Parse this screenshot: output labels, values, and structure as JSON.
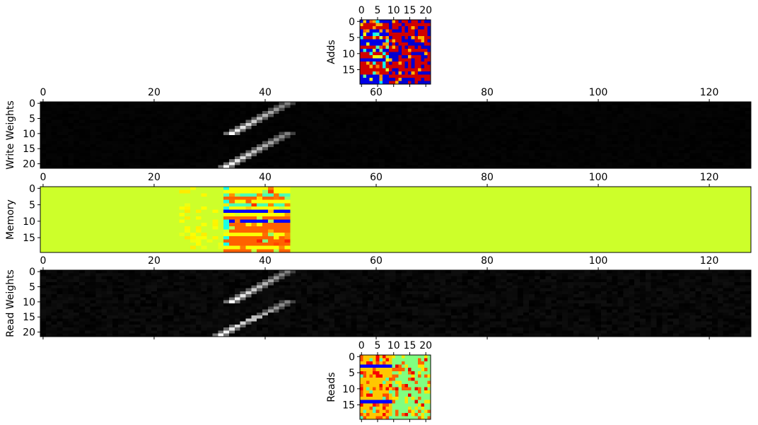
{
  "chart_data": [
    {
      "type": "heatmap",
      "panel": "adds",
      "ylabel": "Adds",
      "colormap": "jet",
      "shape": [
        20,
        22
      ],
      "xticks": [
        0,
        5,
        10,
        15,
        20
      ],
      "yticks": [
        0,
        5,
        10,
        15
      ],
      "tick_axis": "top"
    },
    {
      "type": "heatmap",
      "panel": "write_weights",
      "ylabel": "Write Weights",
      "colormap": "gray",
      "shape": [
        22,
        128
      ],
      "xticks": [
        0,
        20,
        40,
        60,
        80,
        100,
        120
      ],
      "yticks": [
        0,
        5,
        10,
        15,
        20
      ],
      "tick_axis": "top",
      "bands": [
        {
          "row_start": 0,
          "row_end": 10,
          "col_start": 34,
          "col_end": 44
        },
        {
          "row_start": 10,
          "row_end": 21,
          "col_start": 33,
          "col_end": 44
        }
      ]
    },
    {
      "type": "heatmap",
      "panel": "memory",
      "ylabel": "Memory",
      "colormap": "jet",
      "shape": [
        20,
        128
      ],
      "xticks": [
        0,
        20,
        40,
        60,
        80,
        100,
        120
      ],
      "yticks": [
        0,
        5,
        10,
        15
      ],
      "tick_axis": "top",
      "background": "#cdff2a",
      "active_columns": [
        33,
        44
      ]
    },
    {
      "type": "heatmap",
      "panel": "read_weights",
      "ylabel": "Read Weights",
      "colormap": "gray",
      "shape": [
        22,
        128
      ],
      "xticks": [
        0,
        20,
        40,
        60,
        80,
        100,
        120
      ],
      "yticks": [
        0,
        5,
        10,
        15,
        20
      ],
      "tick_axis": "top",
      "bands": [
        {
          "row_start": 0,
          "row_end": 10,
          "col_start": 34,
          "col_end": 44
        },
        {
          "row_start": 10,
          "row_end": 21,
          "col_start": 32,
          "col_end": 44
        }
      ]
    },
    {
      "type": "heatmap",
      "panel": "reads",
      "ylabel": "Reads",
      "colormap": "jet",
      "shape": [
        20,
        22
      ],
      "xticks": [
        0,
        5,
        10,
        15,
        20
      ],
      "yticks": [
        0,
        5,
        10,
        15
      ],
      "tick_axis": "top"
    }
  ]
}
